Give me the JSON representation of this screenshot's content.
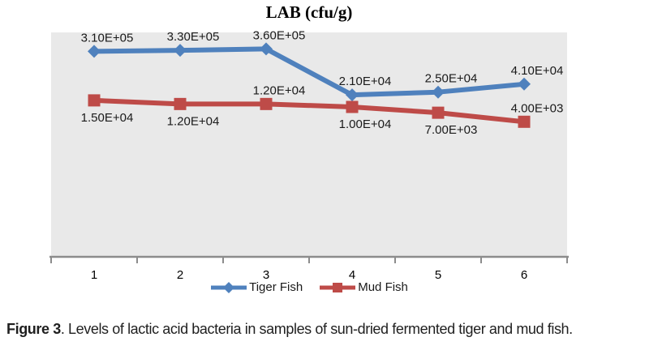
{
  "chart_data": {
    "type": "line",
    "title": "LAB (cfu/g)",
    "categories": [
      "1",
      "2",
      "3",
      "4",
      "5",
      "6"
    ],
    "series": [
      {
        "name": "Tiger Fish",
        "color": "#4F81BD",
        "marker": "diamond",
        "values": [
          310000,
          330000,
          360000,
          21000,
          25000,
          41000
        ],
        "point_labels": [
          "3.10E+05",
          "3.30E+05",
          "3.60E+05",
          "2.10E+04",
          "2.50E+04",
          "4.10E+04"
        ],
        "label_positions": [
          "above",
          "above",
          "above",
          "above",
          "above",
          "above"
        ]
      },
      {
        "name": "Mud Fish",
        "color": "#BE4B48",
        "marker": "square",
        "values": [
          15000,
          12000,
          12000,
          10000,
          7000,
          4000
        ],
        "point_labels": [
          "1.50E+04",
          "1.20E+04",
          "1.20E+04",
          "1.00E+04",
          "7.00E+03",
          "4.00E+03"
        ],
        "label_positions": [
          "below",
          "below",
          "above",
          "below",
          "below",
          "above"
        ]
      }
    ],
    "xlabel": "",
    "ylabel": "",
    "y_axis": {
      "scale": "log",
      "min": 1,
      "max": 1000000,
      "labels_visible": false
    },
    "grid": false,
    "legend_position": "bottom",
    "colors": {
      "plot_background": "#E9E9E9",
      "axis_line": "#8C8C8C",
      "label_text": "#1A1A1A",
      "tick_label_text": "#000000"
    }
  },
  "caption": {
    "label": "Figure 3",
    "text": ". Levels of lactic acid bacteria in samples of sun-dried fermented tiger and mud fish."
  }
}
